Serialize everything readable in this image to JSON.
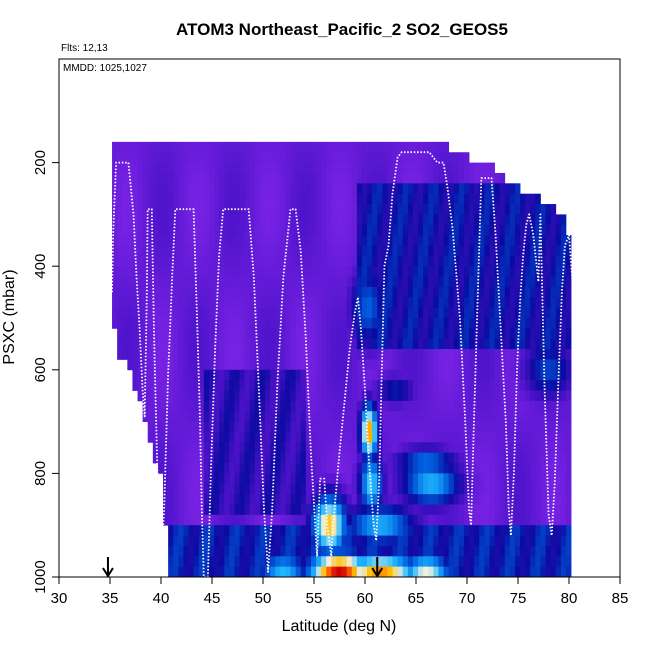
{
  "chart_data": {
    "type": "heatmap",
    "title": "ATOM3 Northeast_Pacific_2 SO2_GEOS5",
    "annotations": [
      "Flts: 12,13",
      "MMDD: 1025,1027"
    ],
    "xlabel": "Latitude (deg N)",
    "ylabel": "PSXC (mbar)",
    "xlim": [
      30,
      85
    ],
    "ylim": [
      1000,
      0
    ],
    "x_ticks": [
      30,
      35,
      40,
      45,
      50,
      55,
      60,
      65,
      70,
      75,
      80,
      85
    ],
    "y_ticks": [
      200,
      400,
      600,
      800,
      1000
    ],
    "grid": false,
    "colormap": [
      "#7b23e6",
      "#4a12c8",
      "#0a0aa0",
      "#0060e0",
      "#20b8ff",
      "#f0f0e0",
      "#ffc000",
      "#ff6000",
      "#d00000"
    ],
    "colormap_stops": [
      0,
      0.12,
      0.25,
      0.4,
      0.55,
      0.7,
      0.8,
      0.9,
      1
    ],
    "arrows_lat": [
      34.8,
      61.2
    ],
    "flight_track": [
      [
        35.2,
        450
      ],
      [
        35.3,
        340
      ],
      [
        35.6,
        200
      ],
      [
        36.8,
        200
      ],
      [
        37.3,
        300
      ],
      [
        37.6,
        420
      ],
      [
        37.9,
        520
      ],
      [
        38.2,
        640
      ],
      [
        38.4,
        690
      ],
      [
        38.6,
        470
      ],
      [
        38.7,
        290
      ],
      [
        39.1,
        290
      ],
      [
        39.3,
        520
      ],
      [
        39.6,
        760
      ],
      [
        39.8,
        900
      ],
      [
        40.0,
        970
      ],
      [
        40.3,
        870
      ],
      [
        40.7,
        610
      ],
      [
        41.1,
        420
      ],
      [
        41.4,
        290
      ],
      [
        43.2,
        290
      ],
      [
        43.5,
        480
      ],
      [
        43.8,
        680
      ],
      [
        44.0,
        870
      ],
      [
        44.2,
        1000
      ],
      [
        44.6,
        1000
      ],
      [
        44.9,
        790
      ],
      [
        45.3,
        560
      ],
      [
        45.7,
        380
      ],
      [
        46.1,
        290
      ],
      [
        48.6,
        290
      ],
      [
        49.1,
        420
      ],
      [
        49.6,
        640
      ],
      [
        50.1,
        870
      ],
      [
        50.5,
        990
      ],
      [
        50.9,
        870
      ],
      [
        51.4,
        630
      ],
      [
        52.0,
        420
      ],
      [
        52.7,
        290
      ],
      [
        53.2,
        290
      ],
      [
        53.7,
        370
      ],
      [
        54.2,
        540
      ],
      [
        54.7,
        760
      ],
      [
        55.0,
        860
      ],
      [
        55.3,
        960
      ],
      [
        55.6,
        810
      ],
      [
        56.0,
        810
      ],
      [
        56.3,
        900
      ],
      [
        56.7,
        960
      ],
      [
        57.0,
        870
      ],
      [
        57.5,
        760
      ],
      [
        58.0,
        660
      ],
      [
        58.5,
        560
      ],
      [
        59.0,
        490
      ],
      [
        59.3,
        460
      ],
      [
        59.6,
        520
      ],
      [
        60.0,
        640
      ],
      [
        60.4,
        780
      ],
      [
        60.8,
        890
      ],
      [
        61.1,
        930
      ],
      [
        61.4,
        810
      ],
      [
        61.6,
        640
      ],
      [
        61.8,
        480
      ],
      [
        61.9,
        400
      ],
      [
        62.3,
        360
      ],
      [
        62.7,
        260
      ],
      [
        63.2,
        190
      ],
      [
        63.6,
        180
      ],
      [
        66.3,
        180
      ],
      [
        67.1,
        200
      ],
      [
        67.7,
        200
      ],
      [
        68.1,
        250
      ],
      [
        68.6,
        330
      ],
      [
        69.3,
        500
      ],
      [
        69.8,
        690
      ],
      [
        70.2,
        870
      ],
      [
        70.4,
        900
      ],
      [
        70.7,
        690
      ],
      [
        71.1,
        430
      ],
      [
        71.4,
        230
      ],
      [
        72.4,
        230
      ],
      [
        72.8,
        340
      ],
      [
        73.3,
        520
      ],
      [
        73.8,
        700
      ],
      [
        74.1,
        870
      ],
      [
        74.3,
        920
      ],
      [
        74.6,
        800
      ],
      [
        74.9,
        600
      ],
      [
        75.2,
        470
      ],
      [
        75.5,
        380
      ],
      [
        75.8,
        320
      ],
      [
        76.1,
        300
      ],
      [
        76.5,
        340
      ],
      [
        77.0,
        430
      ],
      [
        77.2,
        300
      ],
      [
        77.6,
        630
      ],
      [
        78.0,
        880
      ],
      [
        78.3,
        920
      ],
      [
        78.6,
        820
      ],
      [
        79.0,
        600
      ],
      [
        79.3,
        450
      ],
      [
        79.6,
        360
      ],
      [
        80.0,
        340
      ],
      [
        80.3,
        420
      ],
      [
        80.5,
        450
      ]
    ],
    "curtain_bounds": [
      [
        35.2,
        170,
        470
      ],
      [
        35.6,
        170,
        560
      ],
      [
        36.5,
        170,
        590
      ],
      [
        37.2,
        170,
        620
      ],
      [
        37.7,
        170,
        660
      ],
      [
        38.3,
        170,
        680
      ],
      [
        38.9,
        170,
        740
      ],
      [
        39.4,
        170,
        780
      ],
      [
        40.0,
        170,
        800
      ],
      [
        41.0,
        170,
        1000
      ],
      [
        45.0,
        170,
        1000
      ],
      [
        50.0,
        170,
        1000
      ],
      [
        55.0,
        170,
        1000
      ],
      [
        60.0,
        170,
        1000
      ],
      [
        65.0,
        170,
        1000
      ],
      [
        68.0,
        170,
        1000
      ],
      [
        70.0,
        190,
        1000
      ],
      [
        72.0,
        200,
        1000
      ],
      [
        74.0,
        240,
        1000
      ],
      [
        76.0,
        260,
        1000
      ],
      [
        78.0,
        280,
        1000
      ],
      [
        79.5,
        300,
        1000
      ],
      [
        80.2,
        350,
        1000
      ]
    ],
    "plumes": [
      {
        "lat": 57.5,
        "p": 990,
        "wlat": 3.2,
        "wp": 40,
        "amp": 1.0
      },
      {
        "lat": 61.5,
        "p": 990,
        "wlat": 4.0,
        "wp": 35,
        "amp": 0.85
      },
      {
        "lat": 66.0,
        "p": 990,
        "wlat": 2.5,
        "wp": 35,
        "amp": 0.7
      },
      {
        "lat": 56.5,
        "p": 900,
        "wlat": 1.8,
        "wp": 60,
        "amp": 0.8
      },
      {
        "lat": 60.4,
        "p": 720,
        "wlat": 0.9,
        "wp": 55,
        "amp": 0.85
      },
      {
        "lat": 60.6,
        "p": 820,
        "wlat": 1.2,
        "wp": 60,
        "amp": 0.6
      },
      {
        "lat": 66.5,
        "p": 820,
        "wlat": 3.0,
        "wp": 45,
        "amp": 0.55
      },
      {
        "lat": 66.0,
        "p": 780,
        "wlat": 3.0,
        "wp": 30,
        "amp": 0.45
      },
      {
        "lat": 63.0,
        "p": 640,
        "wlat": 2.0,
        "wp": 30,
        "amp": 0.3
      },
      {
        "lat": 61.5,
        "p": 900,
        "wlat": 3.5,
        "wp": 40,
        "amp": 0.55
      },
      {
        "lat": 52.0,
        "p": 990,
        "wlat": 2.5,
        "wp": 40,
        "amp": 0.55
      },
      {
        "lat": 78.0,
        "p": 600,
        "wlat": 2.5,
        "wp": 60,
        "amp": 0.35
      },
      {
        "lat": 60.3,
        "p": 480,
        "wlat": 1.8,
        "wp": 80,
        "amp": 0.4
      }
    ],
    "background_layers": [
      {
        "lat_from": 59.0,
        "lat_to": 80.5,
        "p_from": 250,
        "p_to": 560,
        "base": 0.25
      },
      {
        "lat_from": 40.0,
        "lat_to": 80.5,
        "p_from": 900,
        "p_to": 1000,
        "base": 0.28
      },
      {
        "lat_from": 44.0,
        "lat_to": 54.0,
        "p_from": 600,
        "p_to": 880,
        "base": 0.18
      }
    ]
  }
}
